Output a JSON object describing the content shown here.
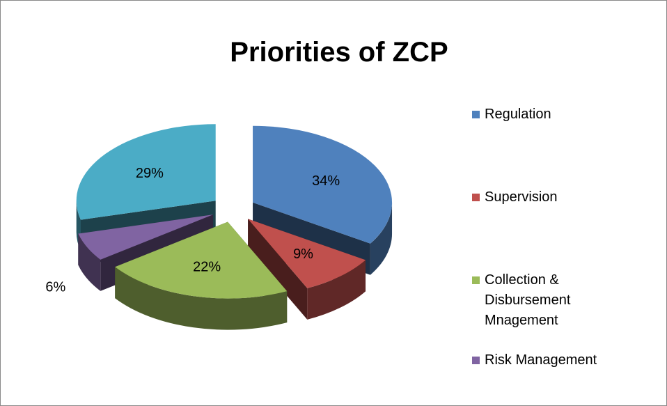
{
  "chart_data": {
    "type": "pie",
    "title": "Priorities of ZCP",
    "categories": [
      "Regulation",
      "Supervision",
      "Collection & Disbursement Mnagement",
      "Risk Management",
      null
    ],
    "values": [
      34,
      9,
      22,
      6,
      29
    ],
    "value_labels": [
      "34%",
      "9%",
      "22%",
      "6%",
      "29%"
    ],
    "colors": [
      "#4f81bd",
      "#c0504d",
      "#9bbb59",
      "#8064a2",
      "#4bacc6"
    ],
    "legend": "right"
  }
}
